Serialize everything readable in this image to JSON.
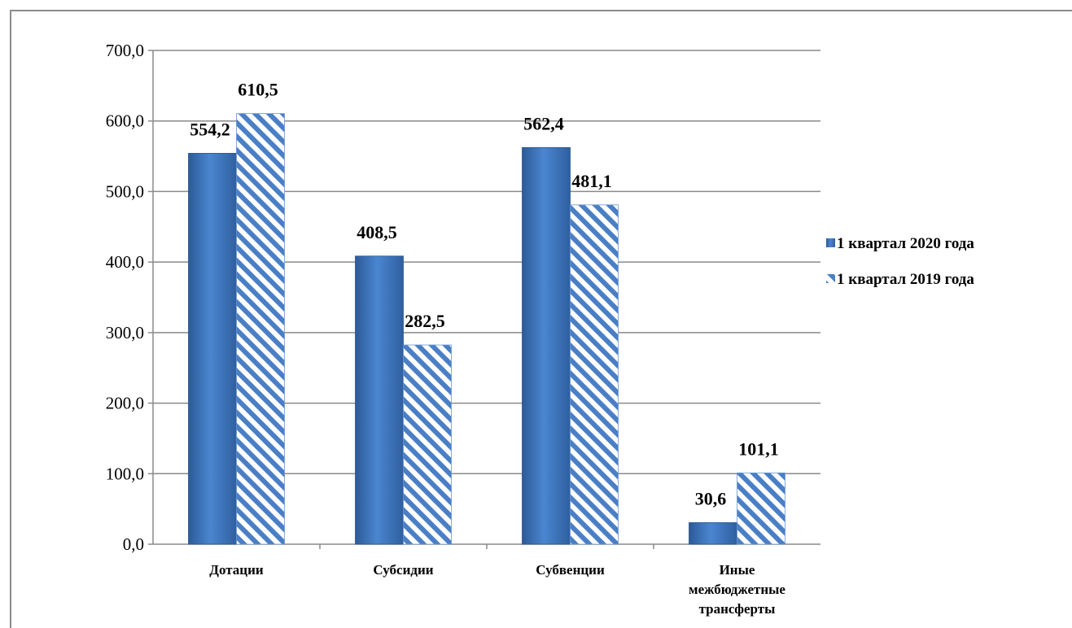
{
  "chart_data": {
    "type": "bar",
    "title": "",
    "xlabel": "",
    "ylabel": "",
    "categories": [
      [
        "Дотации"
      ],
      [
        "Субсидии"
      ],
      [
        "Субвенции"
      ],
      [
        "Иные",
        "межбюджетные",
        "трансферты"
      ]
    ],
    "series": [
      {
        "name": "1 квартал 2020 года",
        "values": [
          554.2,
          408.5,
          562.4,
          30.6
        ],
        "labels": [
          "554,2",
          "408,5",
          "562,4",
          "30,6"
        ],
        "color": "#3a70b6",
        "pattern": "solid"
      },
      {
        "name": "1 квартал 2019 года",
        "values": [
          610.5,
          282.5,
          481.1,
          101.1
        ],
        "labels": [
          "610,5",
          "282,5",
          "481,1",
          "101,1"
        ],
        "color": "#4a7fc6",
        "pattern": "diagonal-stripes"
      }
    ],
    "ylim": [
      0,
      700
    ],
    "yticks": [
      "0,0",
      "100,0",
      "200,0",
      "300,0",
      "400,0",
      "500,0",
      "600,0",
      "700,0"
    ],
    "grid": true,
    "legend_position": "right"
  }
}
